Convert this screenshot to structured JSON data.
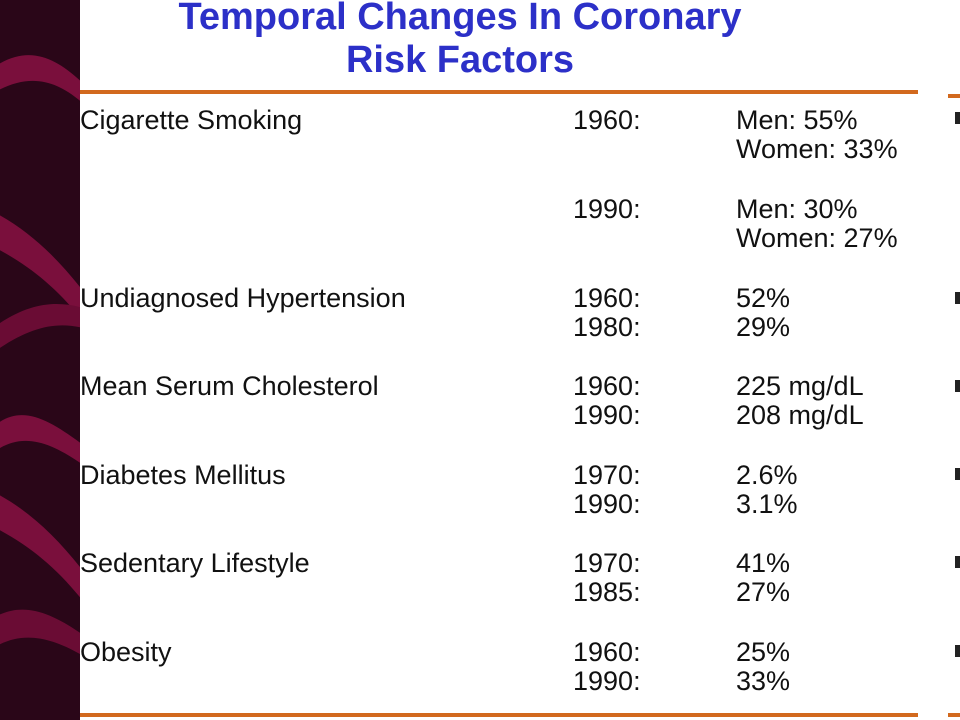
{
  "title": {
    "line1": "Temporal Changes In Coronary",
    "line2": "Risk Factors"
  },
  "colors": {
    "title": "#2c30c8",
    "rule": "#d2691e",
    "background": "#2a0618",
    "accent_stripes": "#7a0f3c"
  },
  "table": {
    "rows": [
      {
        "factor": "Cigarette Smoking",
        "entries": [
          {
            "year": "1960:",
            "values": [
              "Men: 55%",
              "Women: 33%"
            ]
          },
          {
            "year": "1990:",
            "values": [
              "Men: 30%",
              "Women: 27%"
            ]
          }
        ]
      },
      {
        "factor": "Undiagnosed Hypertension",
        "entries": [
          {
            "year": "1960:",
            "values": [
              "52%"
            ]
          },
          {
            "year": "1980:",
            "values": [
              "29%"
            ]
          }
        ]
      },
      {
        "factor": "Mean Serum Cholesterol",
        "entries": [
          {
            "year": "1960:",
            "values": [
              "225 mg/dL"
            ]
          },
          {
            "year": "1990:",
            "values": [
              "208 mg/dL"
            ]
          }
        ]
      },
      {
        "factor": "Diabetes Mellitus",
        "entries": [
          {
            "year": "1970:",
            "values": [
              "2.6%"
            ]
          },
          {
            "year": "1990:",
            "values": [
              "3.1%"
            ]
          }
        ]
      },
      {
        "factor": "Sedentary Lifestyle",
        "entries": [
          {
            "year": "1970:",
            "values": [
              "41%"
            ]
          },
          {
            "year": "1985:",
            "values": [
              "27%"
            ]
          }
        ]
      },
      {
        "factor": "Obesity",
        "entries": [
          {
            "year": "1960:",
            "values": [
              "25%"
            ]
          },
          {
            "year": "1990:",
            "values": [
              "33%"
            ]
          }
        ]
      }
    ]
  }
}
